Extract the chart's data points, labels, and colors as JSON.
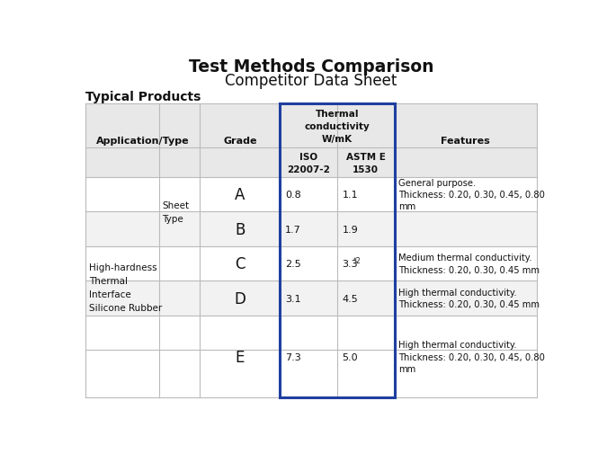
{
  "title_line1": "Test Methods Comparison",
  "title_line2": "Competitor Data Sheet",
  "section_title": "Typical Products",
  "bg_color": "#ffffff",
  "highlight_border": "#1f3fa0",
  "rows": [
    {
      "grade": "A",
      "iso": "0.8",
      "astm": "1.1",
      "astm_note": "",
      "feat1": "General purpose.",
      "feat2": "Thickness: 0.20, 0.30, 0.45, 0.80",
      "feat3": "mm"
    },
    {
      "grade": "B",
      "iso": "1.7",
      "astm": "1.9",
      "astm_note": "",
      "feat1": "",
      "feat2": "",
      "feat3": ""
    },
    {
      "grade": "C",
      "iso": "2.5",
      "astm": "3.3",
      "astm_note": "*2",
      "feat1": "Medium thermal conductivity.",
      "feat2": "Thickness: 0.20, 0.30, 0.45 mm",
      "feat3": ""
    },
    {
      "grade": "D",
      "iso": "3.1",
      "astm": "4.5",
      "astm_note": "",
      "feat1": "High thermal conductivity.",
      "feat2": "Thickness: 0.20, 0.30, 0.45 mm",
      "feat3": ""
    },
    {
      "grade": "E",
      "iso": "7.3",
      "astm": "5.0",
      "astm_note": "",
      "feat1": "High thermal conductivity.",
      "feat2": "Thickness: 0.20, 0.30, 0.45, 0.80",
      "feat3": "mm"
    }
  ]
}
